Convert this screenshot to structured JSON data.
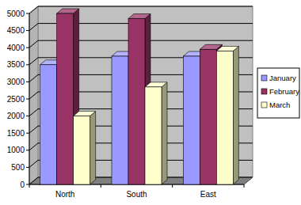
{
  "chart_data": {
    "type": "bar",
    "categories": [
      "North",
      "South",
      "East"
    ],
    "series": [
      {
        "name": "January",
        "color": "#9999ff",
        "values": [
          3500,
          3750,
          3750
        ]
      },
      {
        "name": "February",
        "color": "#993366",
        "values": [
          5000,
          4850,
          3950
        ]
      },
      {
        "name": "March",
        "color": "#ffffcc",
        "values": [
          2000,
          2850,
          3900
        ]
      }
    ],
    "ylim": [
      0,
      5000
    ],
    "yticks": [
      0,
      500,
      1000,
      1500,
      2000,
      2500,
      3000,
      3500,
      4000,
      4500,
      5000
    ],
    "grid": true,
    "legend": "right"
  }
}
